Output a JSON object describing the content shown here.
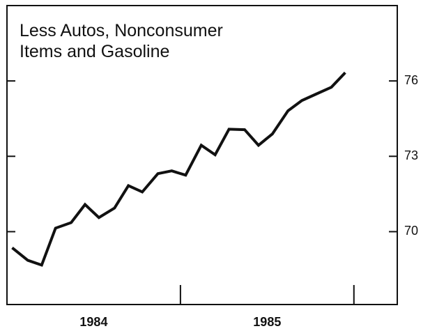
{
  "chart_data": {
    "type": "line",
    "title": [
      "Less Autos, Nonconsumer",
      "Items and Gasoline"
    ],
    "categories": [
      "1984",
      "1985"
    ],
    "x": [
      1984.03,
      1984.12,
      1984.2,
      1984.28,
      1984.37,
      1984.45,
      1984.53,
      1984.62,
      1984.7,
      1984.78,
      1984.87,
      1984.95,
      1985.03,
      1985.12,
      1985.2,
      1985.28,
      1985.37,
      1985.45,
      1985.53,
      1985.62,
      1985.7,
      1985.78,
      1985.87,
      1985.95
    ],
    "values": [
      69.36,
      68.86,
      68.67,
      70.14,
      70.36,
      71.08,
      70.56,
      70.94,
      71.83,
      71.58,
      72.31,
      72.42,
      72.25,
      73.44,
      73.06,
      74.08,
      74.06,
      73.44,
      73.89,
      74.81,
      75.22,
      75.47,
      75.75,
      76.33
    ],
    "color": "#111111",
    "xlim": [
      1984,
      1986.25
    ],
    "xticks": [
      1985,
      1986
    ],
    "ylim": [
      67.1,
      79
    ],
    "yticks": [
      70,
      73,
      76
    ]
  }
}
